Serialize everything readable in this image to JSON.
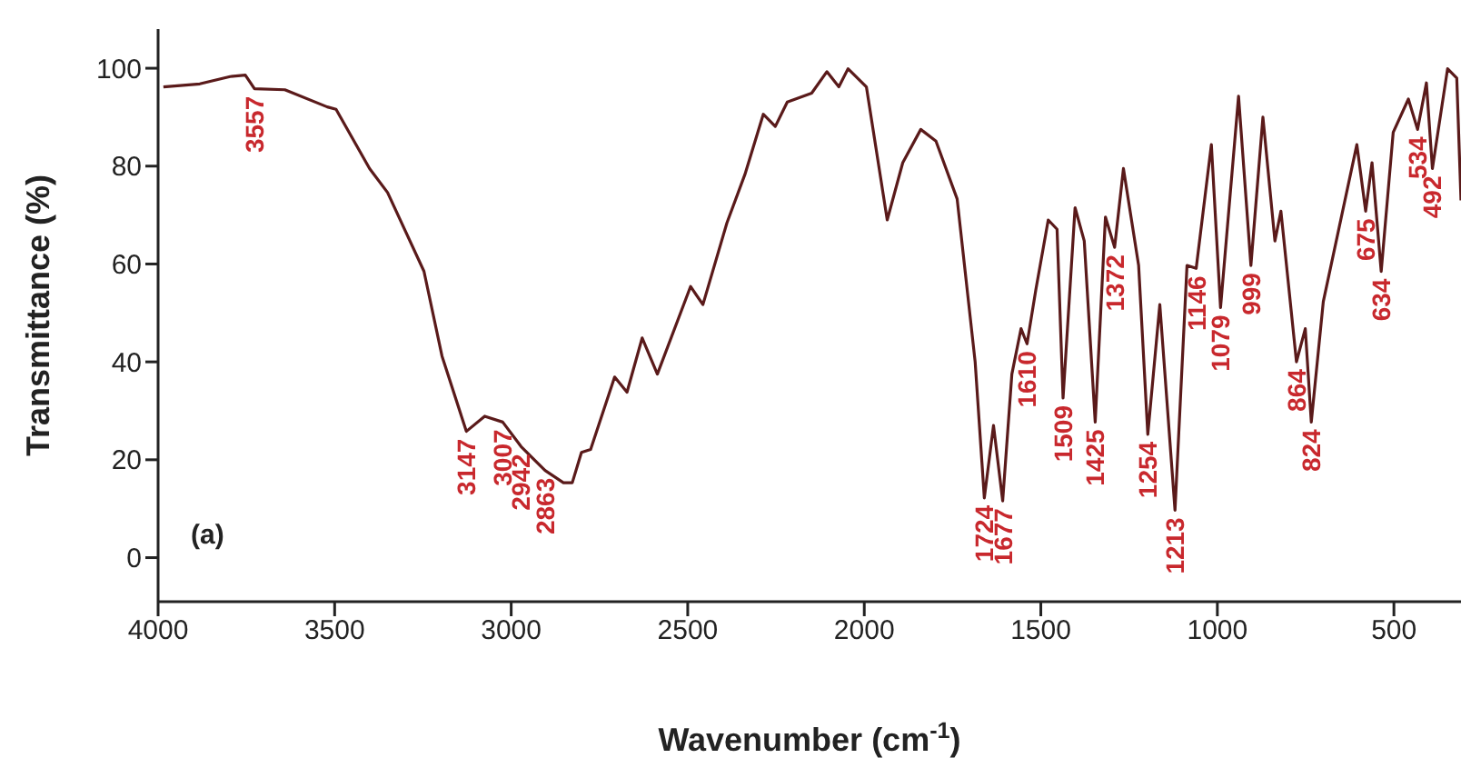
{
  "chart_data": {
    "type": "line",
    "xlabel": "Wavenumber (cm$^{-1}$)",
    "ylabel": "Transmittance (%)",
    "xlim": [
      4000,
      310
    ],
    "xticks": [
      4000,
      3500,
      3000,
      2500,
      2000,
      1500,
      1000,
      500
    ],
    "ylim": [
      -9,
      108
    ],
    "yticks": [
      0,
      20,
      40,
      60,
      80,
      100
    ],
    "grid": false,
    "marker": "none",
    "line_style": "solid",
    "series": [
      {
        "color": "#5a1a1a",
        "x": [
          3985,
          3882,
          3796,
          3753,
          3727,
          3641,
          3521,
          3496,
          3401,
          3350,
          3247,
          3196,
          3127,
          3075,
          3024,
          2972,
          2904,
          2852,
          2827,
          2801,
          2775,
          2707,
          2672,
          2629,
          2586,
          2492,
          2457,
          2389,
          2338,
          2286,
          2252,
          2218,
          2149,
          2106,
          2072,
          2046,
          1994,
          1935,
          1891,
          1840,
          1797,
          1737,
          1686,
          1660,
          1634,
          1608,
          1582,
          1556,
          1539,
          1514,
          1479,
          1454,
          1437,
          1403,
          1377,
          1346,
          1317,
          1291,
          1266,
          1223,
          1197,
          1163,
          1120,
          1086,
          1060,
          1017,
          991,
          940,
          905,
          871,
          837,
          820,
          776,
          751,
          734,
          700,
          605,
          580,
          562,
          536,
          502,
          459,
          433,
          408,
          391,
          348,
          322,
          310
        ],
        "values": [
          96.2,
          96.8,
          98.3,
          98.6,
          95.8,
          95.6,
          92.1,
          91.6,
          79.5,
          74.6,
          58.5,
          41.2,
          25.8,
          28.9,
          27.7,
          22.7,
          17.8,
          15.3,
          15.3,
          21.5,
          22.1,
          36.9,
          33.8,
          44.9,
          37.5,
          55.4,
          51.7,
          68.4,
          78.3,
          90.6,
          88.1,
          93.1,
          94.9,
          99.3,
          96.2,
          99.9,
          96.2,
          69.0,
          80.7,
          87.5,
          85.1,
          73.3,
          40,
          12.2,
          27,
          11.6,
          37.5,
          46.8,
          43.7,
          54.8,
          69,
          67.1,
          32.6,
          71.5,
          64.7,
          27.7,
          69.6,
          63.4,
          79.5,
          59.7,
          25.2,
          51.7,
          9.7,
          59.7,
          59.1,
          84.4,
          51.1,
          94.3,
          59.7,
          90,
          64.7,
          70.8,
          40,
          46.8,
          27.7,
          52.3,
          84.4,
          70.8,
          80.7,
          58.5,
          86.9,
          93.7,
          87.5,
          97,
          79.5,
          99.9,
          98,
          73
        ]
      }
    ],
    "annotations": [
      {
        "text": "3557",
        "x": 3727,
        "y": 95.8
      },
      {
        "text": "3147",
        "x": 3127,
        "y": 25.8
      },
      {
        "text": "3007",
        "x": 3024,
        "y": 27.7
      },
      {
        "text": "2942",
        "x": 2972,
        "y": 22.7
      },
      {
        "text": "2863",
        "x": 2904,
        "y": 17.8
      },
      {
        "text": "1724",
        "x": 1660,
        "y": 12.2
      },
      {
        "text": "1677",
        "x": 1608,
        "y": 11.6
      },
      {
        "text": "1610",
        "x": 1539,
        "y": 43.7
      },
      {
        "text": "1509",
        "x": 1437,
        "y": 32.6
      },
      {
        "text": "1425",
        "x": 1346,
        "y": 27.7
      },
      {
        "text": "1372",
        "x": 1291,
        "y": 63.4
      },
      {
        "text": "1254",
        "x": 1197,
        "y": 25.2
      },
      {
        "text": "1213",
        "x": 1120,
        "y": 9.7
      },
      {
        "text": "1146",
        "x": 1060,
        "y": 59.1
      },
      {
        "text": "1079",
        "x": 991,
        "y": 51.1
      },
      {
        "text": "999",
        "x": 905,
        "y": 59.7
      },
      {
        "text": "864",
        "x": 776,
        "y": 40
      },
      {
        "text": "824",
        "x": 734,
        "y": 27.7
      },
      {
        "text": "675",
        "x": 580,
        "y": 70.8
      },
      {
        "text": "634",
        "x": 536,
        "y": 58.5
      },
      {
        "text": "534",
        "x": 433,
        "y": 87.5
      },
      {
        "text": "492",
        "x": 391,
        "y": 79.5
      },
      "(a)"
    ]
  }
}
